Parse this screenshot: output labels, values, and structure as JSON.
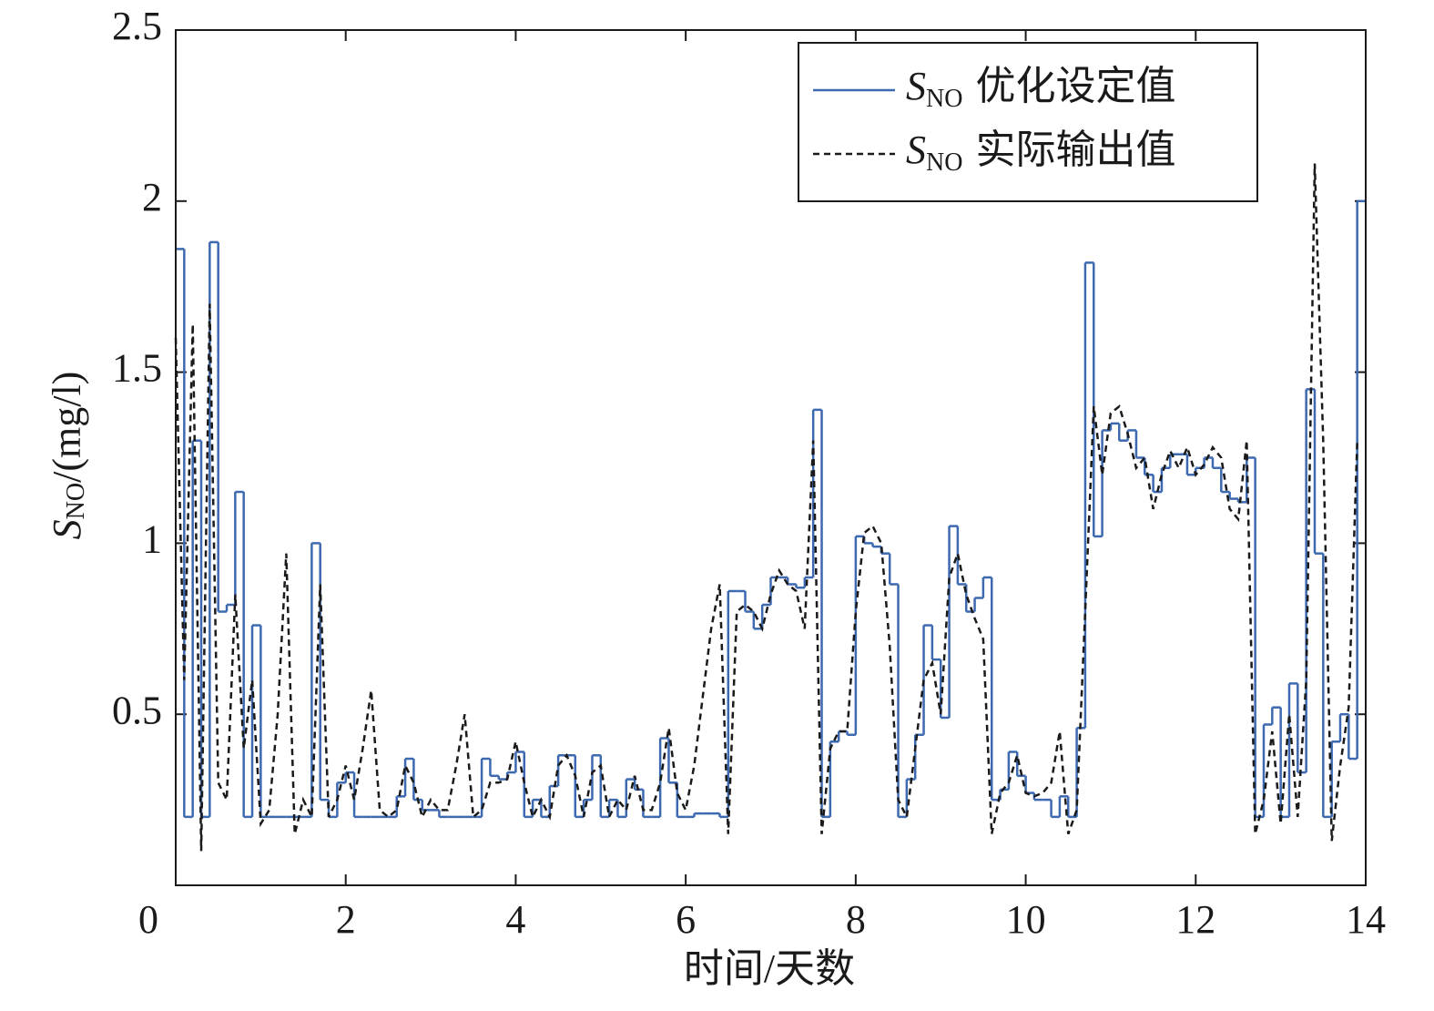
{
  "chart_data": {
    "type": "line",
    "variable": {
      "symbol": "S",
      "subscript": "NO"
    },
    "y_label_unit": "/(mg/l)",
    "x_label": "时间/天数",
    "xlim": [
      0,
      14
    ],
    "xticks": [
      0,
      2,
      4,
      6,
      8,
      10,
      12,
      14
    ],
    "ylim": [
      0,
      2.5
    ],
    "yticks": [
      0.5,
      1,
      1.5,
      2,
      2.5
    ],
    "legend": "upper right",
    "x": [
      0,
      0.1,
      0.2,
      0.3,
      0.4,
      0.5,
      0.6,
      0.7,
      0.8,
      0.9,
      1,
      1.1,
      1.2,
      1.3,
      1.4,
      1.5,
      1.6,
      1.7,
      1.8,
      1.9,
      2,
      2.1,
      2.2,
      2.3,
      2.4,
      2.5,
      2.6,
      2.7,
      2.8,
      2.9,
      3,
      3.1,
      3.2,
      3.3,
      3.4,
      3.5,
      3.6,
      3.7,
      3.8,
      3.9,
      4,
      4.1,
      4.2,
      4.3,
      4.4,
      4.5,
      4.6,
      4.7,
      4.8,
      4.9,
      5,
      5.1,
      5.2,
      5.3,
      5.4,
      5.5,
      5.6,
      5.7,
      5.8,
      5.9,
      6,
      6.1,
      6.2,
      6.3,
      6.4,
      6.5,
      6.6,
      6.7,
      6.8,
      6.9,
      7,
      7.1,
      7.2,
      7.3,
      7.4,
      7.5,
      7.6,
      7.7,
      7.8,
      7.9,
      8,
      8.1,
      8.2,
      8.3,
      8.4,
      8.5,
      8.6,
      8.7,
      8.8,
      8.9,
      9,
      9.1,
      9.2,
      9.3,
      9.4,
      9.5,
      9.6,
      9.7,
      9.8,
      9.9,
      10,
      10.1,
      10.2,
      10.3,
      10.4,
      10.5,
      10.6,
      10.7,
      10.8,
      10.9,
      11,
      11.1,
      11.2,
      11.3,
      11.4,
      11.5,
      11.6,
      11.7,
      11.8,
      11.9,
      12,
      12.1,
      12.2,
      12.3,
      12.4,
      12.5,
      12.6,
      12.7,
      12.8,
      12.9,
      13,
      13.1,
      13.2,
      13.3,
      13.4,
      13.5,
      13.6,
      13.7,
      13.8,
      13.9
    ],
    "series": [
      {
        "name": "优化设定值",
        "color": "#3d69b0",
        "style": "step",
        "values": [
          1.86,
          0.2,
          1.3,
          0.2,
          1.88,
          0.8,
          0.82,
          1.15,
          0.2,
          0.76,
          0.2,
          0.2,
          0.2,
          0.2,
          0.2,
          0.2,
          1.0,
          0.25,
          0.2,
          0.3,
          0.33,
          0.2,
          0.2,
          0.2,
          0.2,
          0.2,
          0.26,
          0.37,
          0.25,
          0.22,
          0.22,
          0.2,
          0.2,
          0.2,
          0.2,
          0.2,
          0.37,
          0.32,
          0.31,
          0.33,
          0.39,
          0.2,
          0.25,
          0.2,
          0.29,
          0.38,
          0.38,
          0.2,
          0.25,
          0.38,
          0.2,
          0.25,
          0.2,
          0.31,
          0.28,
          0.2,
          0.2,
          0.43,
          0.3,
          0.2,
          0.2,
          0.21,
          0.21,
          0.21,
          0.2,
          0.86,
          0.86,
          0.8,
          0.75,
          0.82,
          0.9,
          0.9,
          0.88,
          0.87,
          0.9,
          1.39,
          0.2,
          0.42,
          0.45,
          0.44,
          1.02,
          1.0,
          0.99,
          0.97,
          0.88,
          0.2,
          0.31,
          0.44,
          0.76,
          0.66,
          0.49,
          1.05,
          0.88,
          0.8,
          0.84,
          0.9,
          0.25,
          0.28,
          0.39,
          0.32,
          0.27,
          0.25,
          0.25,
          0.2,
          0.26,
          0.2,
          0.46,
          1.82,
          1.02,
          1.33,
          1.35,
          1.3,
          1.33,
          1.25,
          1.2,
          1.15,
          1.22,
          1.26,
          1.26,
          1.2,
          1.22,
          1.25,
          1.22,
          1.15,
          1.13,
          1.12,
          1.25,
          0.2,
          0.47,
          0.52,
          0.2,
          0.59,
          0.33,
          1.45,
          0.97,
          0.2,
          0.42,
          0.5,
          0.37,
          2.0
        ]
      },
      {
        "name": "实际输出值",
        "color": "#1a1a1a",
        "style": "dashed",
        "values": [
          1.6,
          0.6,
          1.64,
          0.1,
          1.7,
          0.3,
          0.25,
          0.85,
          0.4,
          0.6,
          0.18,
          0.22,
          0.5,
          0.97,
          0.15,
          0.25,
          0.2,
          0.88,
          0.2,
          0.25,
          0.35,
          0.25,
          0.4,
          0.57,
          0.22,
          0.2,
          0.22,
          0.35,
          0.3,
          0.2,
          0.25,
          0.22,
          0.22,
          0.35,
          0.5,
          0.2,
          0.22,
          0.3,
          0.3,
          0.31,
          0.42,
          0.3,
          0.2,
          0.25,
          0.2,
          0.35,
          0.38,
          0.32,
          0.2,
          0.33,
          0.35,
          0.2,
          0.25,
          0.22,
          0.32,
          0.22,
          0.22,
          0.3,
          0.46,
          0.27,
          0.22,
          0.35,
          0.55,
          0.75,
          0.88,
          0.15,
          0.8,
          0.82,
          0.8,
          0.75,
          0.85,
          0.92,
          0.88,
          0.86,
          0.75,
          1.3,
          0.15,
          0.4,
          0.45,
          0.45,
          0.8,
          1.03,
          1.05,
          1.0,
          0.7,
          0.25,
          0.2,
          0.4,
          0.6,
          0.65,
          0.5,
          0.9,
          0.97,
          0.85,
          0.78,
          0.72,
          0.15,
          0.27,
          0.3,
          0.38,
          0.27,
          0.26,
          0.27,
          0.3,
          0.45,
          0.15,
          0.22,
          0.8,
          1.4,
          1.2,
          1.38,
          1.4,
          1.32,
          1.22,
          1.25,
          1.1,
          1.2,
          1.27,
          1.22,
          1.28,
          1.2,
          1.23,
          1.28,
          1.25,
          1.1,
          1.07,
          1.3,
          0.15,
          0.25,
          0.45,
          0.18,
          0.5,
          0.2,
          0.6,
          2.11,
          1.3,
          0.13,
          0.35,
          0.52,
          1.3
        ]
      }
    ]
  }
}
